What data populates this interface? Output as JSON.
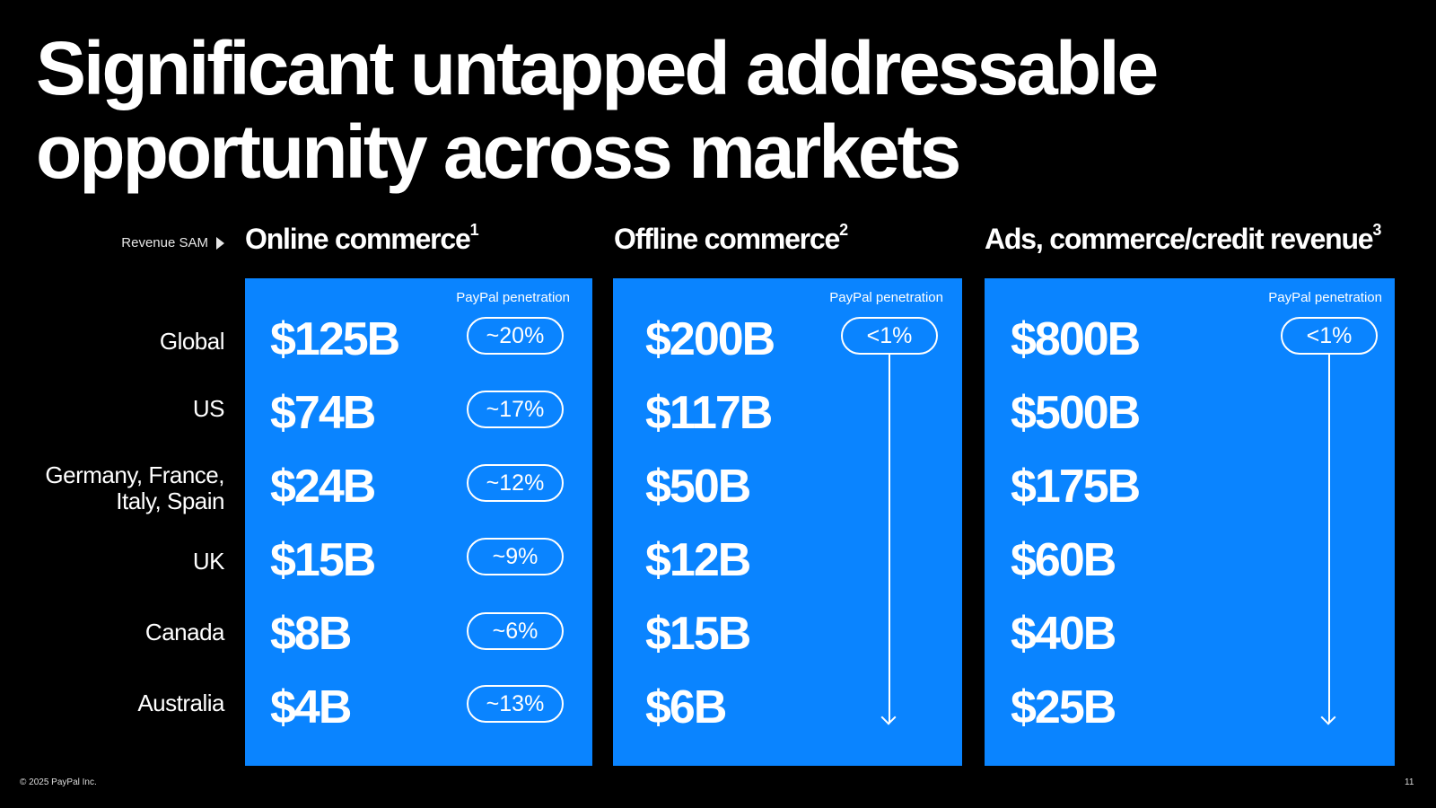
{
  "title_line1": "Significant untapped addressable",
  "title_line2": "opportunity across markets",
  "revenue_sam_label": "Revenue SAM",
  "regions": [
    {
      "line1": "Global",
      "line2": ""
    },
    {
      "line1": "US",
      "line2": ""
    },
    {
      "line1": "Germany, France,",
      "line2": "Italy, Spain"
    },
    {
      "line1": "UK",
      "line2": ""
    },
    {
      "line1": "Canada",
      "line2": ""
    },
    {
      "line1": "Australia",
      "line2": ""
    }
  ],
  "columns": [
    {
      "heading": "Online commerce",
      "footnote": "1",
      "penetration_label": "PayPal penetration",
      "values": [
        "$125B",
        "$74B",
        "$24B",
        "$15B",
        "$8B",
        "$4B"
      ],
      "penetration": [
        "~20%",
        "~17%",
        "~12%",
        "~9%",
        "~6%",
        "~13%"
      ]
    },
    {
      "heading": "Offline commerce",
      "footnote": "2",
      "penetration_label": "PayPal penetration",
      "values": [
        "$200B",
        "$117B",
        "$50B",
        "$12B",
        "$15B",
        "$6B"
      ],
      "penetration": [
        "<1%"
      ]
    },
    {
      "heading": "Ads, commerce/credit revenue",
      "footnote": "3",
      "penetration_label": "PayPal penetration",
      "values": [
        "$800B",
        "$500B",
        "$175B",
        "$60B",
        "$40B",
        "$25B"
      ],
      "penetration": [
        "<1%"
      ]
    }
  ],
  "footer": "© 2025 PayPal Inc.",
  "page_number": "11"
}
